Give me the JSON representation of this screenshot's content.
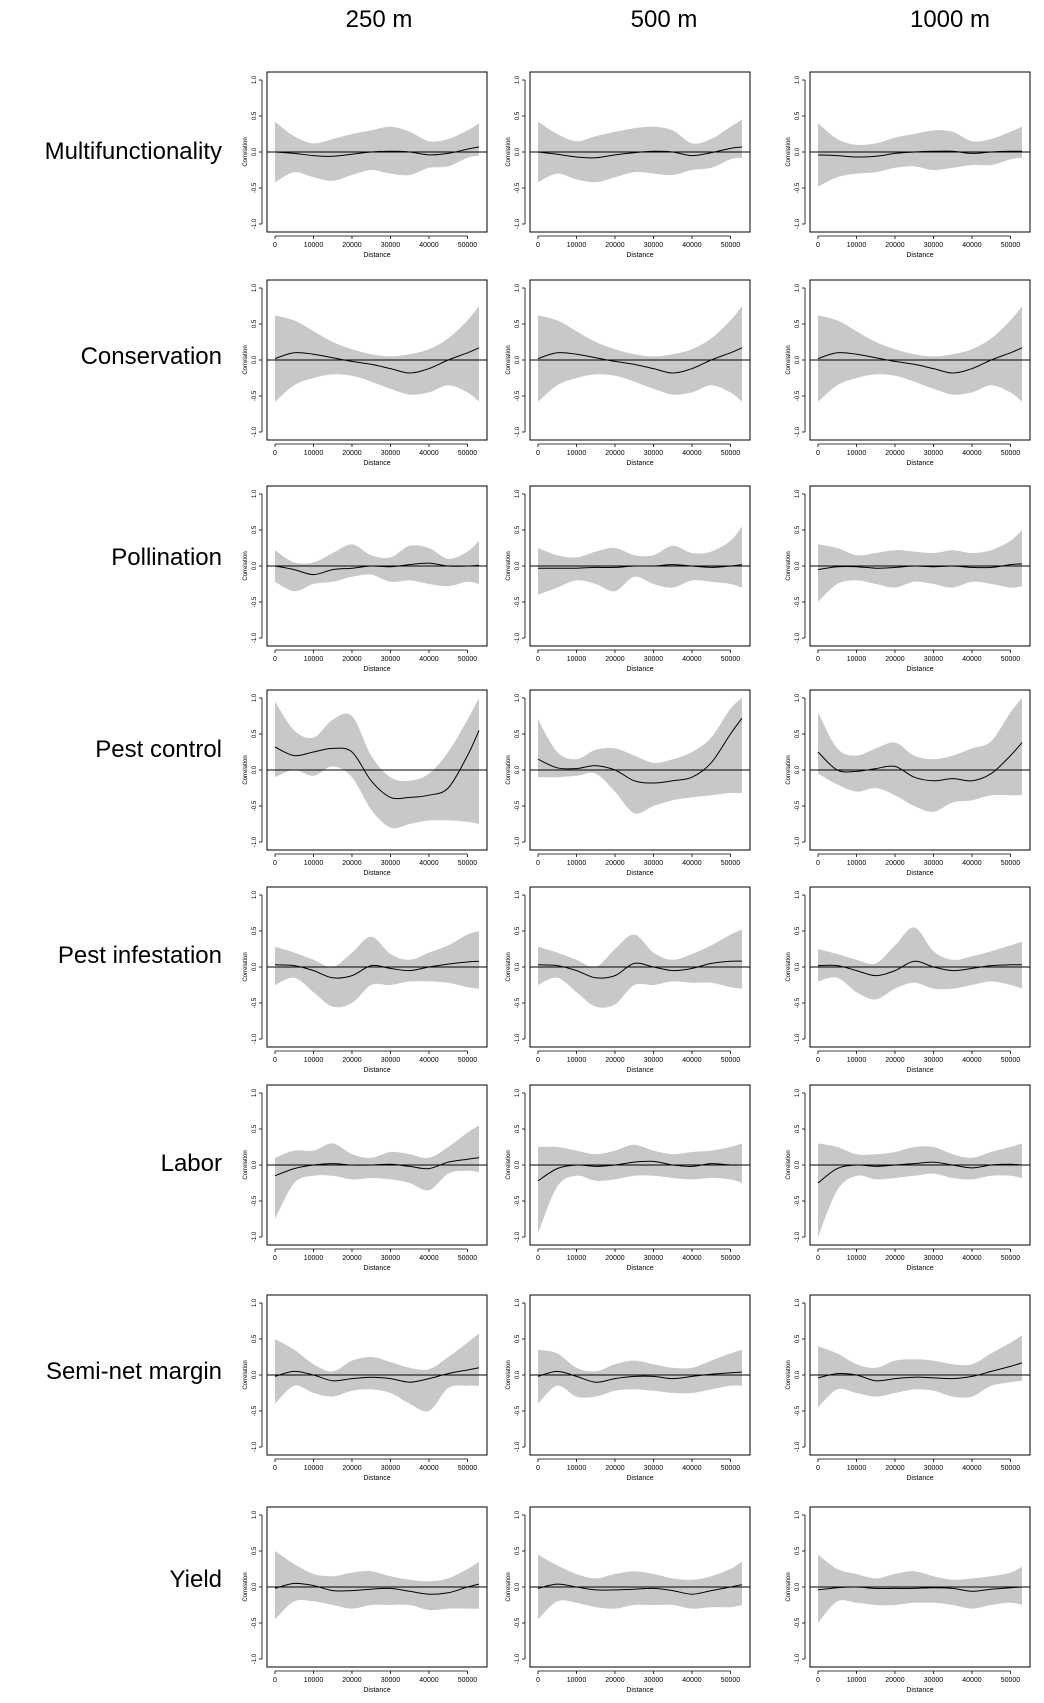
{
  "columns": [
    "250 m",
    "500 m",
    "1000 m"
  ],
  "rows": [
    "Multifunctionality",
    "Conservation",
    "Pollination",
    "Pest control",
    "Pest infestation",
    "Labor",
    "Semi-net margin",
    "Yield"
  ],
  "colors": {
    "band": "#c8c8c8",
    "line": "#000000",
    "frame": "#000000"
  },
  "chart_data": {
    "type": "line",
    "description_note": "8x3 grid of spline correlograms (correlation vs distance) with grey confidence envelopes",
    "xlabel": "Distance",
    "ylabel": "Correlation",
    "xlim": [
      0,
      53000
    ],
    "ylim": [
      -1.0,
      1.0
    ],
    "x_ticks": [
      0,
      10000,
      20000,
      30000,
      40000,
      50000
    ],
    "y_ticks": [
      "-1.0",
      "-0.5",
      "0.0",
      "0.5",
      "1.0"
    ],
    "x": [
      0,
      5000,
      10000,
      15000,
      20000,
      25000,
      30000,
      35000,
      40000,
      45000,
      50000,
      53000
    ],
    "panels": [
      {
        "row": "Multifunctionality",
        "col": "250 m",
        "mean": [
          0.0,
          -0.02,
          -0.05,
          -0.06,
          -0.03,
          0.0,
          0.01,
          0.0,
          -0.04,
          -0.02,
          0.04,
          0.07
        ],
        "upper": [
          0.42,
          0.22,
          0.12,
          0.18,
          0.25,
          0.3,
          0.35,
          0.28,
          0.15,
          0.18,
          0.3,
          0.4
        ],
        "lower": [
          -0.42,
          -0.28,
          -0.35,
          -0.4,
          -0.32,
          -0.25,
          -0.3,
          -0.32,
          -0.22,
          -0.2,
          -0.08,
          -0.05
        ]
      },
      {
        "row": "Multifunctionality",
        "col": "500 m",
        "mean": [
          0.0,
          -0.03,
          -0.07,
          -0.08,
          -0.04,
          -0.01,
          0.01,
          0.0,
          -0.05,
          -0.01,
          0.05,
          0.07
        ],
        "upper": [
          0.42,
          0.25,
          0.15,
          0.22,
          0.28,
          0.33,
          0.35,
          0.3,
          0.12,
          0.18,
          0.35,
          0.45
        ],
        "lower": [
          -0.42,
          -0.3,
          -0.38,
          -0.42,
          -0.35,
          -0.28,
          -0.3,
          -0.32,
          -0.25,
          -0.22,
          -0.1,
          -0.08
        ]
      },
      {
        "row": "Multifunctionality",
        "col": "1000 m",
        "mean": [
          -0.04,
          -0.05,
          -0.07,
          -0.06,
          -0.02,
          0.0,
          0.01,
          0.01,
          -0.02,
          0.0,
          0.01,
          0.01
        ],
        "upper": [
          0.4,
          0.18,
          0.1,
          0.12,
          0.2,
          0.25,
          0.3,
          0.28,
          0.15,
          0.18,
          0.28,
          0.35
        ],
        "lower": [
          -0.48,
          -0.35,
          -0.3,
          -0.28,
          -0.22,
          -0.2,
          -0.25,
          -0.22,
          -0.18,
          -0.18,
          -0.1,
          -0.08
        ]
      },
      {
        "row": "Conservation",
        "col": "250 m",
        "mean": [
          0.02,
          0.1,
          0.08,
          0.03,
          -0.02,
          -0.06,
          -0.12,
          -0.18,
          -0.12,
          0.0,
          0.1,
          0.17
        ],
        "upper": [
          0.62,
          0.55,
          0.4,
          0.25,
          0.15,
          0.08,
          0.05,
          0.08,
          0.15,
          0.3,
          0.55,
          0.75
        ],
        "lower": [
          -0.58,
          -0.35,
          -0.25,
          -0.2,
          -0.22,
          -0.3,
          -0.4,
          -0.48,
          -0.45,
          -0.35,
          -0.45,
          -0.58
        ]
      },
      {
        "row": "Conservation",
        "col": "500 m",
        "mean": [
          0.02,
          0.1,
          0.08,
          0.03,
          -0.02,
          -0.06,
          -0.12,
          -0.18,
          -0.12,
          0.0,
          0.1,
          0.17
        ],
        "upper": [
          0.62,
          0.55,
          0.4,
          0.25,
          0.15,
          0.08,
          0.05,
          0.08,
          0.15,
          0.3,
          0.55,
          0.75
        ],
        "lower": [
          -0.58,
          -0.35,
          -0.25,
          -0.2,
          -0.22,
          -0.3,
          -0.4,
          -0.48,
          -0.45,
          -0.35,
          -0.45,
          -0.58
        ]
      },
      {
        "row": "Conservation",
        "col": "1000 m",
        "mean": [
          0.02,
          0.1,
          0.08,
          0.03,
          -0.02,
          -0.06,
          -0.12,
          -0.18,
          -0.12,
          0.0,
          0.1,
          0.17
        ],
        "upper": [
          0.62,
          0.55,
          0.4,
          0.25,
          0.15,
          0.08,
          0.05,
          0.08,
          0.15,
          0.3,
          0.55,
          0.75
        ],
        "lower": [
          -0.58,
          -0.35,
          -0.25,
          -0.2,
          -0.22,
          -0.3,
          -0.4,
          -0.48,
          -0.45,
          -0.35,
          -0.45,
          -0.58
        ]
      },
      {
        "row": "Pollination",
        "col": "250 m",
        "mean": [
          0.0,
          -0.05,
          -0.12,
          -0.05,
          -0.03,
          0.0,
          -0.01,
          0.02,
          0.04,
          0.0,
          0.0,
          0.01
        ],
        "upper": [
          0.22,
          0.05,
          0.05,
          0.18,
          0.3,
          0.15,
          0.12,
          0.28,
          0.25,
          0.1,
          0.2,
          0.35
        ],
        "lower": [
          -0.22,
          -0.35,
          -0.25,
          -0.22,
          -0.15,
          -0.12,
          -0.22,
          -0.2,
          -0.25,
          -0.28,
          -0.22,
          -0.25
        ]
      },
      {
        "row": "Pollination",
        "col": "500 m",
        "mean": [
          -0.03,
          -0.03,
          -0.03,
          -0.02,
          -0.02,
          0.0,
          0.0,
          0.02,
          0.0,
          -0.02,
          0.0,
          0.02
        ],
        "upper": [
          0.25,
          0.15,
          0.12,
          0.2,
          0.25,
          0.15,
          0.15,
          0.28,
          0.18,
          0.2,
          0.35,
          0.55
        ],
        "lower": [
          -0.4,
          -0.3,
          -0.2,
          -0.25,
          -0.35,
          -0.15,
          -0.25,
          -0.3,
          -0.2,
          -0.22,
          -0.25,
          -0.3
        ]
      },
      {
        "row": "Pollination",
        "col": "1000 m",
        "mean": [
          -0.05,
          -0.01,
          -0.01,
          -0.03,
          -0.02,
          0.0,
          -0.01,
          0.0,
          -0.02,
          -0.02,
          0.02,
          0.03
        ],
        "upper": [
          0.3,
          0.25,
          0.15,
          0.18,
          0.22,
          0.2,
          0.18,
          0.22,
          0.18,
          0.22,
          0.35,
          0.5
        ],
        "lower": [
          -0.5,
          -0.25,
          -0.2,
          -0.25,
          -0.3,
          -0.22,
          -0.25,
          -0.3,
          -0.22,
          -0.25,
          -0.3,
          -0.28
        ]
      },
      {
        "row": "Pest control",
        "col": "250 m",
        "mean": [
          0.32,
          0.2,
          0.25,
          0.3,
          0.25,
          -0.15,
          -0.38,
          -0.38,
          -0.35,
          -0.25,
          0.2,
          0.55
        ],
        "upper": [
          0.95,
          0.55,
          0.45,
          0.7,
          0.75,
          0.2,
          -0.1,
          -0.15,
          -0.05,
          0.25,
          0.7,
          1.0
        ],
        "lower": [
          -0.1,
          0.0,
          -0.08,
          0.05,
          -0.1,
          -0.55,
          -0.8,
          -0.75,
          -0.7,
          -0.7,
          -0.72,
          -0.75
        ]
      },
      {
        "row": "Pest control",
        "col": "500 m",
        "mean": [
          0.15,
          0.03,
          0.02,
          0.06,
          0.0,
          -0.15,
          -0.18,
          -0.15,
          -0.1,
          0.1,
          0.5,
          0.72
        ],
        "upper": [
          0.7,
          0.25,
          0.15,
          0.28,
          0.3,
          0.2,
          0.1,
          0.15,
          0.25,
          0.45,
          0.85,
          1.0
        ],
        "lower": [
          -0.1,
          -0.1,
          -0.08,
          -0.05,
          -0.3,
          -0.6,
          -0.5,
          -0.42,
          -0.38,
          -0.35,
          -0.32,
          -0.32
        ]
      },
      {
        "row": "Pest control",
        "col": "1000 m",
        "mean": [
          0.25,
          0.0,
          -0.02,
          0.02,
          0.05,
          -0.1,
          -0.15,
          -0.12,
          -0.15,
          -0.05,
          0.2,
          0.38
        ],
        "upper": [
          0.8,
          0.3,
          0.2,
          0.3,
          0.38,
          0.2,
          0.15,
          0.2,
          0.3,
          0.4,
          0.8,
          1.0
        ],
        "lower": [
          -0.05,
          -0.2,
          -0.3,
          -0.25,
          -0.35,
          -0.5,
          -0.58,
          -0.45,
          -0.42,
          -0.35,
          -0.35,
          -0.35
        ]
      },
      {
        "row": "Pest infestation",
        "col": "250 m",
        "mean": [
          0.03,
          0.02,
          -0.05,
          -0.15,
          -0.12,
          0.02,
          -0.02,
          -0.05,
          0.0,
          0.04,
          0.07,
          0.08
        ],
        "upper": [
          0.28,
          0.2,
          0.1,
          0.0,
          0.2,
          0.42,
          0.18,
          0.1,
          0.2,
          0.3,
          0.45,
          0.5
        ],
        "lower": [
          -0.25,
          -0.15,
          -0.35,
          -0.55,
          -0.5,
          -0.25,
          -0.25,
          -0.2,
          -0.2,
          -0.22,
          -0.28,
          -0.3
        ]
      },
      {
        "row": "Pest infestation",
        "col": "500 m",
        "mean": [
          0.03,
          0.02,
          -0.05,
          -0.15,
          -0.12,
          0.05,
          0.0,
          -0.05,
          -0.02,
          0.05,
          0.08,
          0.08
        ],
        "upper": [
          0.28,
          0.2,
          0.1,
          0.0,
          0.25,
          0.45,
          0.2,
          0.1,
          0.18,
          0.3,
          0.45,
          0.52
        ],
        "lower": [
          -0.25,
          -0.15,
          -0.35,
          -0.55,
          -0.52,
          -0.25,
          -0.25,
          -0.2,
          -0.22,
          -0.22,
          -0.28,
          -0.3
        ]
      },
      {
        "row": "Pest infestation",
        "col": "1000 m",
        "mean": [
          0.02,
          0.02,
          -0.05,
          -0.12,
          -0.05,
          0.08,
          0.0,
          -0.05,
          -0.02,
          0.02,
          0.03,
          0.03
        ],
        "upper": [
          0.25,
          0.18,
          0.1,
          0.05,
          0.3,
          0.55,
          0.22,
          0.1,
          0.15,
          0.22,
          0.3,
          0.35
        ],
        "lower": [
          -0.2,
          -0.15,
          -0.35,
          -0.45,
          -0.3,
          -0.22,
          -0.3,
          -0.3,
          -0.25,
          -0.2,
          -0.25,
          -0.3
        ]
      },
      {
        "row": "Labor",
        "col": "250 m",
        "mean": [
          -0.15,
          -0.05,
          0.0,
          0.02,
          0.0,
          0.0,
          0.01,
          -0.02,
          -0.05,
          0.04,
          0.08,
          0.1
        ],
        "upper": [
          0.1,
          0.2,
          0.2,
          0.3,
          0.15,
          0.1,
          0.18,
          0.15,
          0.1,
          0.25,
          0.45,
          0.55
        ],
        "lower": [
          -0.75,
          -0.25,
          -0.15,
          -0.15,
          -0.2,
          -0.18,
          -0.2,
          -0.25,
          -0.35,
          -0.12,
          -0.08,
          -0.1
        ]
      },
      {
        "row": "Labor",
        "col": "500 m",
        "mean": [
          -0.22,
          -0.05,
          0.0,
          -0.02,
          0.0,
          0.04,
          0.05,
          0.0,
          -0.02,
          0.02,
          0.0,
          0.0
        ],
        "upper": [
          0.25,
          0.25,
          0.2,
          0.15,
          0.2,
          0.28,
          0.2,
          0.15,
          0.18,
          0.2,
          0.25,
          0.3
        ],
        "lower": [
          -0.95,
          -0.3,
          -0.15,
          -0.22,
          -0.2,
          -0.15,
          -0.15,
          -0.18,
          -0.2,
          -0.18,
          -0.2,
          -0.25
        ]
      },
      {
        "row": "Labor",
        "col": "1000 m",
        "mean": [
          -0.25,
          -0.05,
          0.0,
          -0.02,
          0.0,
          0.02,
          0.04,
          0.0,
          -0.04,
          0.0,
          0.01,
          0.0
        ],
        "upper": [
          0.3,
          0.25,
          0.15,
          0.15,
          0.18,
          0.25,
          0.25,
          0.15,
          0.1,
          0.18,
          0.25,
          0.3
        ],
        "lower": [
          -1.0,
          -0.35,
          -0.15,
          -0.2,
          -0.18,
          -0.15,
          -0.12,
          -0.18,
          -0.2,
          -0.15,
          -0.15,
          -0.18
        ]
      },
      {
        "row": "Semi-net margin",
        "col": "250 m",
        "mean": [
          -0.02,
          0.05,
          0.0,
          -0.08,
          -0.05,
          -0.03,
          -0.05,
          -0.1,
          -0.05,
          0.02,
          0.07,
          0.1
        ],
        "upper": [
          0.5,
          0.35,
          0.15,
          0.05,
          0.2,
          0.25,
          0.18,
          0.1,
          0.08,
          0.25,
          0.45,
          0.58
        ],
        "lower": [
          -0.4,
          -0.15,
          -0.25,
          -0.3,
          -0.22,
          -0.2,
          -0.25,
          -0.4,
          -0.5,
          -0.18,
          -0.15,
          -0.15
        ]
      },
      {
        "row": "Semi-net margin",
        "col": "500 m",
        "mean": [
          -0.02,
          0.05,
          -0.02,
          -0.1,
          -0.05,
          -0.02,
          -0.02,
          -0.05,
          -0.02,
          0.01,
          0.03,
          0.04
        ],
        "upper": [
          0.35,
          0.3,
          0.1,
          0.05,
          0.15,
          0.2,
          0.15,
          0.1,
          0.1,
          0.2,
          0.3,
          0.35
        ],
        "lower": [
          -0.4,
          -0.15,
          -0.3,
          -0.3,
          -0.22,
          -0.2,
          -0.22,
          -0.25,
          -0.25,
          -0.2,
          -0.15,
          -0.15
        ]
      },
      {
        "row": "Semi-net margin",
        "col": "1000 m",
        "mean": [
          -0.04,
          0.02,
          0.0,
          -0.08,
          -0.05,
          -0.03,
          -0.04,
          -0.05,
          -0.02,
          0.05,
          0.12,
          0.17
        ],
        "upper": [
          0.4,
          0.3,
          0.15,
          0.1,
          0.2,
          0.22,
          0.2,
          0.15,
          0.15,
          0.3,
          0.45,
          0.55
        ],
        "lower": [
          -0.45,
          -0.2,
          -0.25,
          -0.3,
          -0.25,
          -0.2,
          -0.22,
          -0.3,
          -0.3,
          -0.15,
          -0.1,
          -0.08
        ]
      },
      {
        "row": "Yield",
        "col": "250 m",
        "mean": [
          -0.02,
          0.05,
          0.02,
          -0.05,
          -0.05,
          -0.03,
          -0.02,
          -0.06,
          -0.1,
          -0.08,
          0.0,
          0.04
        ],
        "upper": [
          0.5,
          0.32,
          0.18,
          0.15,
          0.2,
          0.22,
          0.15,
          0.1,
          0.08,
          0.12,
          0.25,
          0.35
        ],
        "lower": [
          -0.45,
          -0.2,
          -0.2,
          -0.25,
          -0.3,
          -0.25,
          -0.25,
          -0.25,
          -0.32,
          -0.3,
          -0.3,
          -0.3
        ]
      },
      {
        "row": "Yield",
        "col": "500 m",
        "mean": [
          -0.02,
          0.04,
          0.0,
          -0.04,
          -0.04,
          -0.03,
          -0.02,
          -0.05,
          -0.1,
          -0.05,
          0.0,
          0.03
        ],
        "upper": [
          0.45,
          0.3,
          0.18,
          0.12,
          0.18,
          0.22,
          0.18,
          0.12,
          0.1,
          0.15,
          0.25,
          0.35
        ],
        "lower": [
          -0.45,
          -0.2,
          -0.22,
          -0.28,
          -0.3,
          -0.25,
          -0.25,
          -0.25,
          -0.3,
          -0.28,
          -0.28,
          -0.25
        ]
      },
      {
        "row": "Yield",
        "col": "1000 m",
        "mean": [
          -0.04,
          -0.01,
          0.0,
          -0.02,
          -0.02,
          -0.02,
          -0.01,
          -0.02,
          -0.06,
          -0.03,
          -0.01,
          0.0
        ],
        "upper": [
          0.45,
          0.25,
          0.18,
          0.12,
          0.18,
          0.22,
          0.15,
          0.1,
          0.12,
          0.15,
          0.2,
          0.28
        ],
        "lower": [
          -0.5,
          -0.2,
          -0.22,
          -0.25,
          -0.25,
          -0.22,
          -0.22,
          -0.25,
          -0.3,
          -0.25,
          -0.22,
          -0.25
        ]
      }
    ]
  }
}
